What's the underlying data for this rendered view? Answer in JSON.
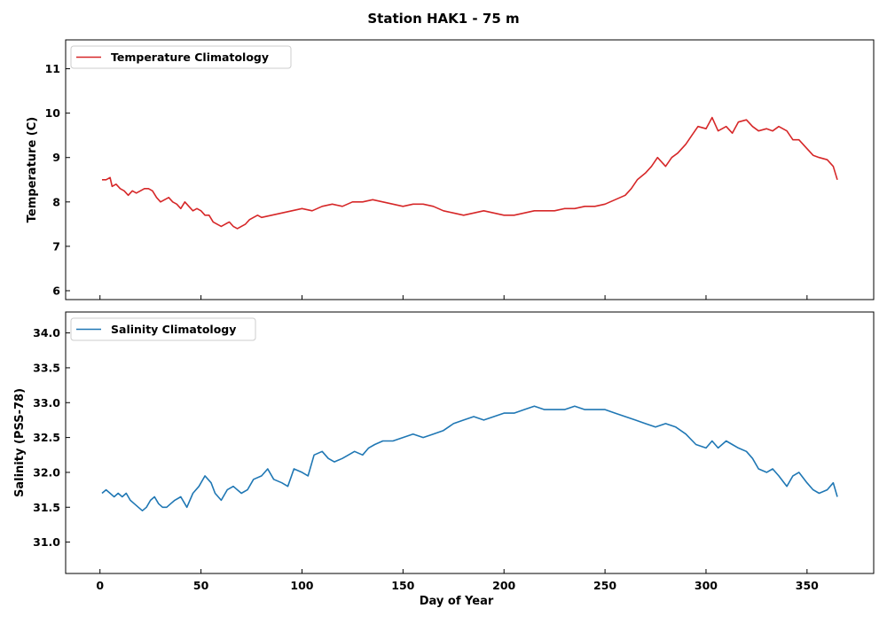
{
  "figure_title": "Station HAK1 - 75 m",
  "chart_data": [
    {
      "type": "line",
      "xlabel": "",
      "ylabel": "Temperature (C)",
      "xlim": [
        -17,
        383
      ],
      "ylim": [
        5.8,
        11.65
      ],
      "xticks": [],
      "yticks": [
        6,
        7,
        8,
        9,
        10,
        11
      ],
      "ytick_labels": [
        "6",
        "7",
        "8",
        "9",
        "10",
        "11"
      ],
      "legend_position": "top-left",
      "grid": false,
      "series": [
        {
          "name": "Temperature Climatology",
          "color": "#d62728",
          "x": [
            1,
            3,
            5,
            6,
            8,
            10,
            12,
            14,
            16,
            18,
            20,
            22,
            24,
            26,
            28,
            30,
            32,
            34,
            36,
            38,
            40,
            42,
            44,
            46,
            48,
            50,
            52,
            54,
            56,
            58,
            60,
            62,
            64,
            66,
            68,
            70,
            72,
            74,
            76,
            78,
            80,
            85,
            90,
            95,
            100,
            105,
            110,
            115,
            120,
            125,
            130,
            135,
            140,
            145,
            150,
            155,
            160,
            165,
            170,
            175,
            180,
            185,
            190,
            195,
            200,
            205,
            210,
            215,
            220,
            225,
            230,
            235,
            240,
            245,
            250,
            255,
            260,
            263,
            266,
            270,
            273,
            276,
            280,
            283,
            286,
            290,
            293,
            296,
            300,
            303,
            306,
            310,
            313,
            316,
            320,
            323,
            326,
            330,
            333,
            336,
            340,
            343,
            346,
            350,
            353,
            356,
            360,
            363,
            365
          ],
          "y": [
            8.5,
            8.5,
            8.55,
            8.35,
            8.4,
            8.3,
            8.25,
            8.15,
            8.25,
            8.2,
            8.25,
            8.3,
            8.3,
            8.25,
            8.1,
            8.0,
            8.05,
            8.1,
            8.0,
            7.95,
            7.85,
            8.0,
            7.9,
            7.8,
            7.85,
            7.8,
            7.7,
            7.7,
            7.55,
            7.5,
            7.45,
            7.5,
            7.55,
            7.45,
            7.4,
            7.45,
            7.5,
            7.6,
            7.65,
            7.7,
            7.65,
            7.7,
            7.75,
            7.8,
            7.85,
            7.8,
            7.9,
            7.95,
            7.9,
            8.0,
            8.0,
            8.05,
            8.0,
            7.95,
            7.9,
            7.95,
            7.95,
            7.9,
            7.8,
            7.75,
            7.7,
            7.75,
            7.8,
            7.75,
            7.7,
            7.7,
            7.75,
            7.8,
            7.8,
            7.8,
            7.85,
            7.85,
            7.9,
            7.9,
            7.95,
            8.05,
            8.15,
            8.3,
            8.5,
            8.65,
            8.8,
            9.0,
            8.8,
            9.0,
            9.1,
            9.3,
            9.5,
            9.7,
            9.65,
            9.9,
            9.6,
            9.7,
            9.55,
            9.8,
            9.85,
            9.7,
            9.6,
            9.65,
            9.6,
            9.7,
            9.6,
            9.4,
            9.4,
            9.2,
            9.05,
            9.0,
            8.95,
            8.8,
            8.5
          ]
        }
      ]
    },
    {
      "type": "line",
      "xlabel": "Day of Year",
      "ylabel": "Salinity (PSS-78)",
      "xlim": [
        -17,
        383
      ],
      "ylim": [
        30.55,
        34.3
      ],
      "xticks": [
        0,
        50,
        100,
        150,
        200,
        250,
        300,
        350
      ],
      "xtick_labels": [
        "0",
        "50",
        "100",
        "150",
        "200",
        "250",
        "300",
        "350"
      ],
      "yticks": [
        31.0,
        31.5,
        32.0,
        32.5,
        33.0,
        33.5,
        34.0
      ],
      "ytick_labels": [
        "31.0",
        "31.5",
        "32.0",
        "32.5",
        "33.0",
        "33.5",
        "34.0"
      ],
      "legend_position": "top-left",
      "grid": false,
      "series": [
        {
          "name": "Salinity Climatology",
          "color": "#1f77b4",
          "x": [
            1,
            3,
            5,
            7,
            9,
            11,
            13,
            15,
            17,
            19,
            21,
            23,
            25,
            27,
            29,
            31,
            33,
            35,
            37,
            40,
            43,
            46,
            49,
            52,
            55,
            57,
            60,
            63,
            66,
            70,
            73,
            76,
            80,
            83,
            86,
            90,
            93,
            96,
            100,
            103,
            106,
            110,
            113,
            116,
            120,
            123,
            126,
            130,
            133,
            136,
            140,
            145,
            150,
            155,
            160,
            165,
            170,
            175,
            180,
            185,
            190,
            195,
            200,
            205,
            210,
            215,
            220,
            225,
            230,
            235,
            240,
            245,
            250,
            255,
            260,
            265,
            270,
            275,
            280,
            285,
            290,
            295,
            300,
            303,
            306,
            310,
            313,
            316,
            320,
            323,
            326,
            330,
            333,
            336,
            340,
            343,
            346,
            350,
            353,
            356,
            360,
            363,
            365
          ],
          "y": [
            31.7,
            31.75,
            31.7,
            31.65,
            31.7,
            31.65,
            31.7,
            31.6,
            31.55,
            31.5,
            31.45,
            31.5,
            31.6,
            31.65,
            31.55,
            31.5,
            31.5,
            31.55,
            31.6,
            31.65,
            31.5,
            31.7,
            31.8,
            31.95,
            31.85,
            31.7,
            31.6,
            31.75,
            31.8,
            31.7,
            31.75,
            31.9,
            31.95,
            32.05,
            31.9,
            31.85,
            31.8,
            32.05,
            32.0,
            31.95,
            32.25,
            32.3,
            32.2,
            32.15,
            32.2,
            32.25,
            32.3,
            32.25,
            32.35,
            32.4,
            32.45,
            32.45,
            32.5,
            32.55,
            32.5,
            32.55,
            32.6,
            32.7,
            32.75,
            32.8,
            32.75,
            32.8,
            32.85,
            32.85,
            32.9,
            32.95,
            32.9,
            32.9,
            32.9,
            32.95,
            32.9,
            32.9,
            32.9,
            32.85,
            32.8,
            32.75,
            32.7,
            32.65,
            32.7,
            32.65,
            32.55,
            32.4,
            32.35,
            32.45,
            32.35,
            32.45,
            32.4,
            32.35,
            32.3,
            32.2,
            32.05,
            32.0,
            32.05,
            31.95,
            31.8,
            31.95,
            32.0,
            31.85,
            31.75,
            31.7,
            31.75,
            31.85,
            31.65
          ]
        }
      ]
    }
  ]
}
